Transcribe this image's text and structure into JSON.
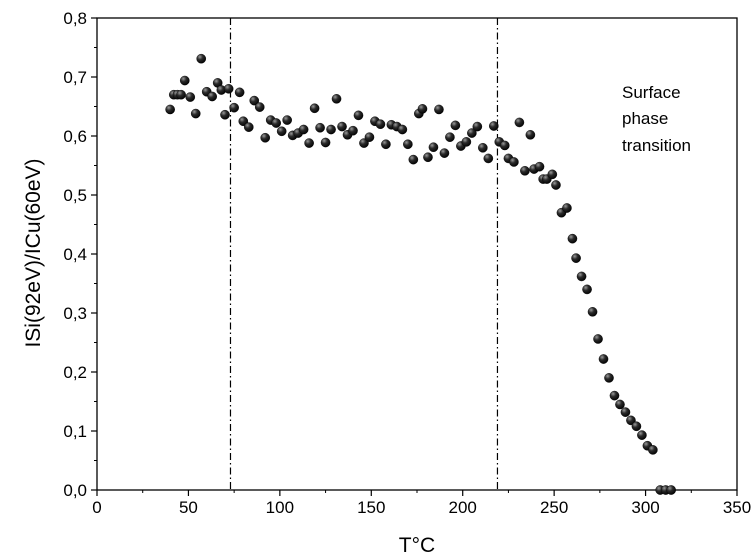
{
  "chart_data": {
    "type": "scatter",
    "xlabel": "T°C",
    "ylabel": "ISi(92eV)/ICu(60eV)",
    "xlim": [
      0,
      350
    ],
    "ylim": [
      0,
      0.8
    ],
    "x_ticks": [
      "0",
      "50",
      "100",
      "150",
      "200",
      "250",
      "300",
      "350"
    ],
    "y_ticks": [
      "0,0",
      "0,1",
      "0,2",
      "0,3",
      "0,4",
      "0,5",
      "0,6",
      "0,7",
      "0,8"
    ],
    "grid": false,
    "marker_color": "#1a1a1a",
    "vertical_lines_x": [
      73,
      219
    ],
    "annotation": [
      "Surface",
      "phase",
      "transition"
    ],
    "series": [
      {
        "points": [
          [
            40,
            0.645
          ],
          [
            42,
            0.67
          ],
          [
            44,
            0.67
          ],
          [
            46,
            0.67
          ],
          [
            48,
            0.694
          ],
          [
            51,
            0.666
          ],
          [
            54,
            0.638
          ],
          [
            57,
            0.731
          ],
          [
            60,
            0.675
          ],
          [
            63,
            0.667
          ],
          [
            66,
            0.69
          ],
          [
            68,
            0.678
          ],
          [
            70,
            0.636
          ],
          [
            72,
            0.68
          ],
          [
            75,
            0.648
          ],
          [
            78,
            0.674
          ],
          [
            80,
            0.625
          ],
          [
            83,
            0.615
          ],
          [
            86,
            0.66
          ],
          [
            89,
            0.649
          ],
          [
            92,
            0.597
          ],
          [
            95,
            0.627
          ],
          [
            98,
            0.622
          ],
          [
            101,
            0.608
          ],
          [
            104,
            0.627
          ],
          [
            107,
            0.601
          ],
          [
            110,
            0.605
          ],
          [
            113,
            0.611
          ],
          [
            116,
            0.588
          ],
          [
            119,
            0.647
          ],
          [
            122,
            0.614
          ],
          [
            125,
            0.589
          ],
          [
            128,
            0.611
          ],
          [
            131,
            0.663
          ],
          [
            134,
            0.616
          ],
          [
            137,
            0.602
          ],
          [
            140,
            0.609
          ],
          [
            143,
            0.635
          ],
          [
            146,
            0.588
          ],
          [
            149,
            0.598
          ],
          [
            152,
            0.625
          ],
          [
            155,
            0.62
          ],
          [
            158,
            0.586
          ],
          [
            161,
            0.619
          ],
          [
            164,
            0.616
          ],
          [
            167,
            0.611
          ],
          [
            170,
            0.586
          ],
          [
            173,
            0.56
          ],
          [
            176,
            0.638
          ],
          [
            178,
            0.646
          ],
          [
            181,
            0.564
          ],
          [
            184,
            0.581
          ],
          [
            187,
            0.645
          ],
          [
            190,
            0.571
          ],
          [
            193,
            0.598
          ],
          [
            196,
            0.618
          ],
          [
            199,
            0.583
          ],
          [
            202,
            0.59
          ],
          [
            205,
            0.605
          ],
          [
            208,
            0.616
          ],
          [
            211,
            0.58
          ],
          [
            214,
            0.562
          ],
          [
            217,
            0.617
          ],
          [
            220,
            0.59
          ],
          [
            223,
            0.584
          ],
          [
            225,
            0.562
          ],
          [
            228,
            0.556
          ],
          [
            231,
            0.623
          ],
          [
            234,
            0.541
          ],
          [
            237,
            0.602
          ],
          [
            239,
            0.544
          ],
          [
            242,
            0.548
          ],
          [
            244,
            0.527
          ],
          [
            246,
            0.527
          ],
          [
            249,
            0.535
          ],
          [
            251,
            0.517
          ],
          [
            254,
            0.47
          ],
          [
            257,
            0.478
          ],
          [
            260,
            0.426
          ],
          [
            262,
            0.393
          ],
          [
            265,
            0.362
          ],
          [
            268,
            0.34
          ],
          [
            271,
            0.302
          ],
          [
            274,
            0.256
          ],
          [
            277,
            0.222
          ],
          [
            280,
            0.19
          ],
          [
            283,
            0.16
          ],
          [
            286,
            0.145
          ],
          [
            289,
            0.132
          ],
          [
            292,
            0.118
          ],
          [
            295,
            0.108
          ],
          [
            298,
            0.093
          ],
          [
            301,
            0.075
          ],
          [
            304,
            0.068
          ],
          [
            308,
            0.0
          ],
          [
            311,
            0.0
          ],
          [
            314,
            0.0
          ]
        ]
      }
    ]
  }
}
